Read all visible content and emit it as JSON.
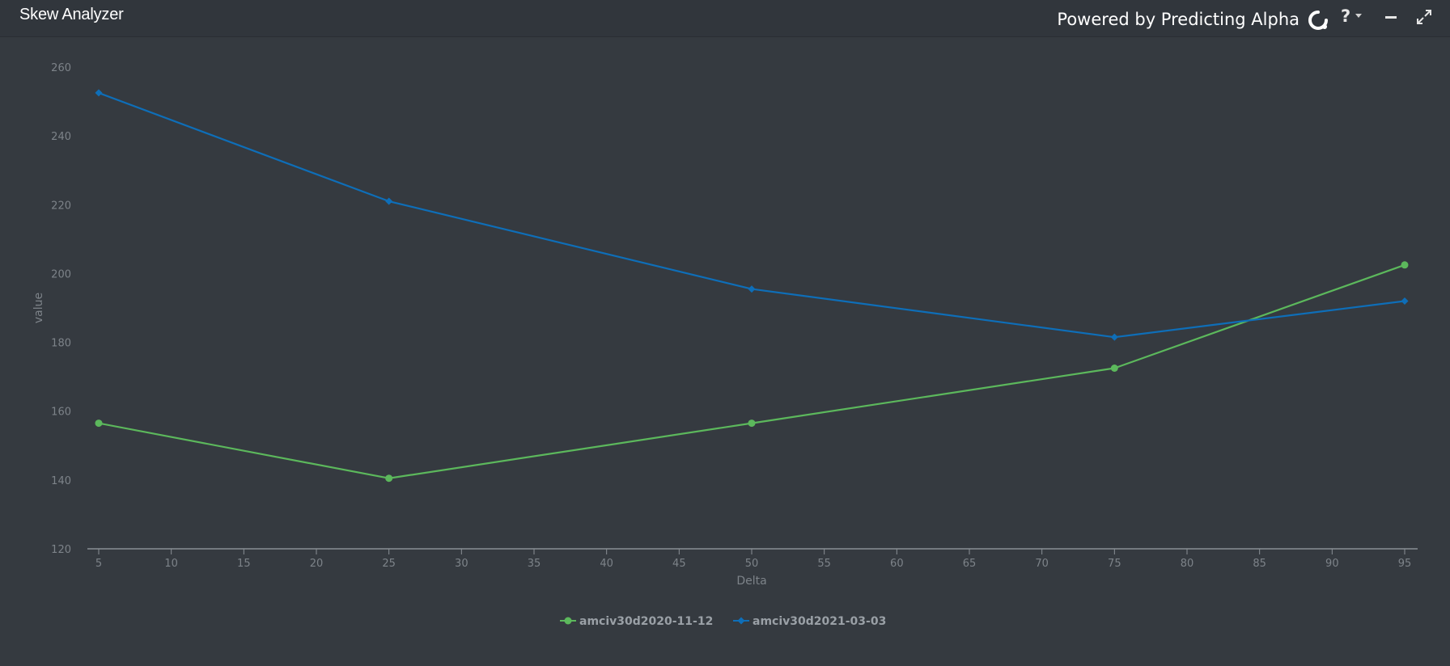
{
  "window": {
    "title": "Skew Analyzer",
    "powered_by": "Powered by Predicting Alpha",
    "icons": {
      "logo": "predicting-alpha-logo-icon",
      "help": "help-icon",
      "help_caret": "caret-down-icon",
      "minimize": "minimize-icon",
      "maximize": "expand-icon"
    }
  },
  "colors": {
    "background": "#353a40",
    "series_green": "#5cb85c",
    "series_blue": "#0e6eb8",
    "axis": "#8a9096",
    "text_muted": "#7d8389"
  },
  "chart_data": {
    "type": "line",
    "xlabel": "Delta",
    "ylabel": "value",
    "xlim": [
      5,
      95
    ],
    "ylim": [
      120,
      260
    ],
    "x_ticks": [
      5,
      10,
      15,
      20,
      25,
      30,
      35,
      40,
      45,
      50,
      55,
      60,
      65,
      70,
      75,
      80,
      85,
      90,
      95
    ],
    "y_ticks": [
      120,
      140,
      160,
      180,
      200,
      220,
      240,
      260
    ],
    "grid": false,
    "legend_position": "bottom-center",
    "x": [
      5,
      25,
      50,
      75,
      95
    ],
    "series": [
      {
        "name": "amciv30d2020-11-12",
        "color": "#5cb85c",
        "marker": "circle",
        "values": [
          156.5,
          140.5,
          156.5,
          172.5,
          202.5
        ]
      },
      {
        "name": "amciv30d2021-03-03",
        "color": "#0e6eb8",
        "marker": "diamond",
        "values": [
          252.5,
          221.0,
          195.5,
          181.5,
          192.0
        ]
      }
    ]
  }
}
